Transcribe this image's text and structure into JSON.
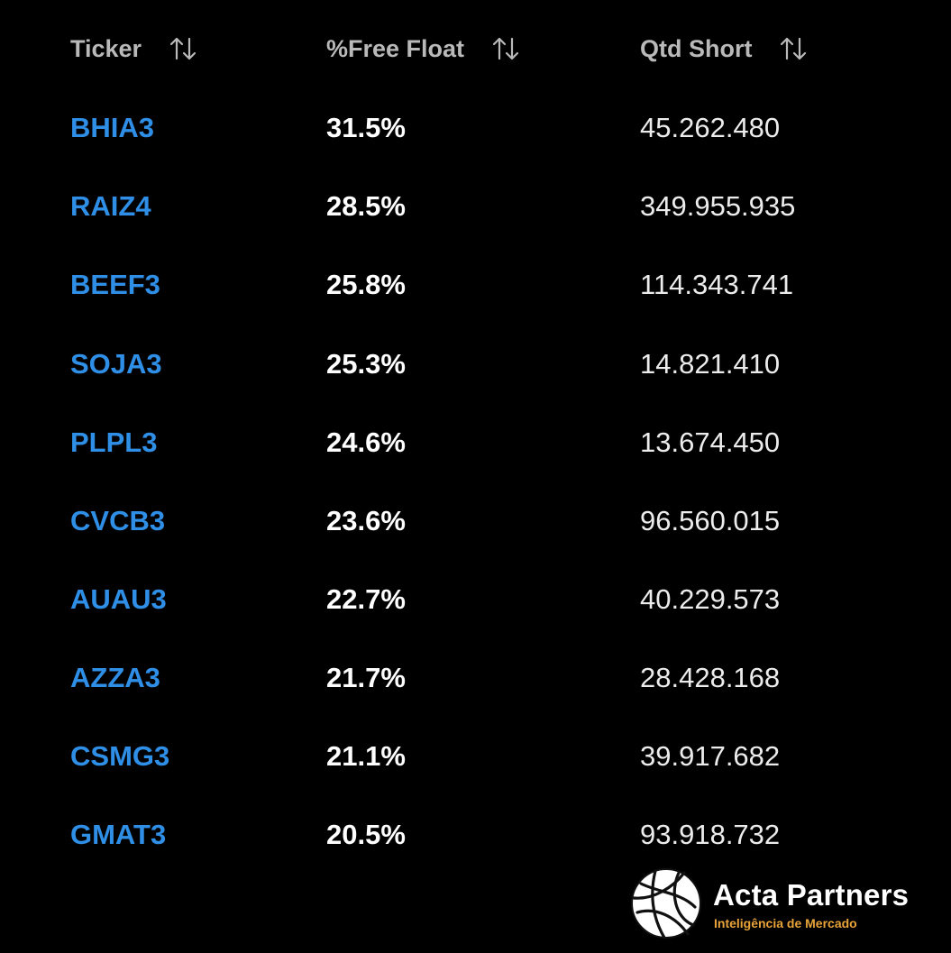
{
  "table": {
    "headers": {
      "ticker": "Ticker",
      "free_float": "%Free Float",
      "qtd_short": "Qtd Short"
    },
    "sort_icon": "sort-up-down-icon",
    "rows": [
      {
        "ticker": "BHIA3",
        "free_float": "31.5%",
        "qtd_short": "45.262.480"
      },
      {
        "ticker": "RAIZ4",
        "free_float": "28.5%",
        "qtd_short": "349.955.935"
      },
      {
        "ticker": "BEEF3",
        "free_float": "25.8%",
        "qtd_short": "114.343.741"
      },
      {
        "ticker": "SOJA3",
        "free_float": "25.3%",
        "qtd_short": "14.821.410"
      },
      {
        "ticker": "PLPL3",
        "free_float": "24.6%",
        "qtd_short": "13.674.450"
      },
      {
        "ticker": "CVCB3",
        "free_float": "23.6%",
        "qtd_short": "96.560.015"
      },
      {
        "ticker": "AUAU3",
        "free_float": "22.7%",
        "qtd_short": "40.229.573"
      },
      {
        "ticker": "AZZA3",
        "free_float": "21.7%",
        "qtd_short": "28.428.168"
      },
      {
        "ticker": "CSMG3",
        "free_float": "21.1%",
        "qtd_short": "39.917.682"
      },
      {
        "ticker": "GMAT3",
        "free_float": "20.5%",
        "qtd_short": "93.918.732"
      }
    ]
  },
  "brand": {
    "name": "Acta Partners",
    "tagline": "Inteligência de Mercado",
    "logo_icon": "globe-logo-icon"
  },
  "colors": {
    "background": "#000000",
    "ticker_link": "#2f8fe6",
    "header_text": "#b9b9b9",
    "tagline": "#e8a33a"
  }
}
